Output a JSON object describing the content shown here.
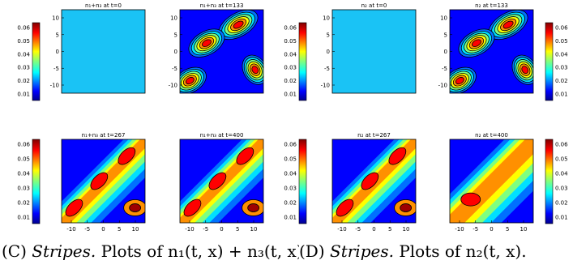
{
  "captions": {
    "left": {
      "letter": "(C)",
      "label": "Stripes.",
      "text": "Plots of n₁(t, x) + n₃(t, x)."
    },
    "right": {
      "letter": "(D)",
      "label": "Stripes.",
      "text": "Plots of n₂(t, x)."
    }
  },
  "chart_data": [
    {
      "type": "heatmap",
      "title": "n₁+n₃ at t=0",
      "xticks": [],
      "yticks": [
        "10",
        "5",
        "0",
        "-5",
        "-10"
      ],
      "colorbar": [
        "0.06",
        "0.05",
        "0.04",
        "0.03",
        "0.02",
        "0.01"
      ],
      "pattern": "flat"
    },
    {
      "type": "heatmap",
      "title": "n₁+n₃ at t=133",
      "xticks": [],
      "yticks": [
        "10",
        "5",
        "0",
        "-5",
        "-10"
      ],
      "colorbar": [],
      "pattern": "blobs"
    },
    {
      "type": "heatmap",
      "title": "n₁+n₃ at t=267",
      "xticks": [
        "-10",
        "-5",
        "0",
        "5",
        "10"
      ],
      "yticks": [],
      "colorbar": [
        "0.06",
        "0.05",
        "0.04",
        "0.03",
        "0.02",
        "0.01"
      ],
      "pattern": "stripe"
    },
    {
      "type": "heatmap",
      "title": "n₁+n₃ at t=400",
      "xticks": [
        "-10",
        "-5",
        "0",
        "5",
        "10"
      ],
      "yticks": [],
      "colorbar": [],
      "pattern": "stripe2"
    },
    {
      "type": "heatmap",
      "title": "n₂ at t=0",
      "xticks": [],
      "yticks": [
        "10",
        "5",
        "0",
        "-5",
        "-10"
      ],
      "colorbar": [
        "0.06",
        "0.05",
        "0.04",
        "0.03",
        "0.02",
        "0.01"
      ],
      "pattern": "flat"
    },
    {
      "type": "heatmap",
      "title": "n₂ at t=133",
      "xticks": [],
      "yticks": [
        "10",
        "5",
        "0",
        "-5",
        "-10"
      ],
      "colorbar": [
        "0.06",
        "0.05",
        "0.04",
        "0.03",
        "0.02",
        "0.01"
      ],
      "pattern": "blobs"
    },
    {
      "type": "heatmap",
      "title": "n₂ at t=267",
      "xticks": [
        "-10",
        "-5",
        "0",
        "5",
        "10"
      ],
      "yticks": [],
      "colorbar": [
        "0.06",
        "0.05",
        "0.04",
        "0.03",
        "0.02",
        "0.01"
      ],
      "pattern": "stripe"
    },
    {
      "type": "heatmap",
      "title": "n₂ at t=400",
      "xticks": [
        "-10",
        "-5",
        "0",
        "5",
        "10"
      ],
      "yticks": [],
      "colorbar": [
        "0.06",
        "0.05",
        "0.04",
        "0.03",
        "0.02",
        "0.01"
      ],
      "pattern": "wide"
    }
  ],
  "colors": {
    "flat": "#1ac3f5",
    "frame": "#000000"
  }
}
